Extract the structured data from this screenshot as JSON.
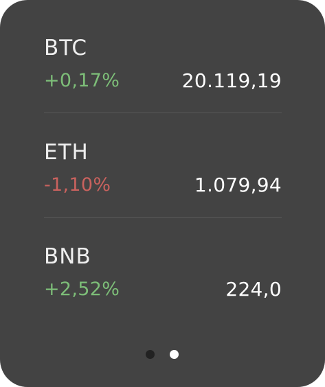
{
  "colors": {
    "background": "#434343",
    "positive": "#7dbe78",
    "negative": "#c9625e",
    "divider": "#5a5a5a",
    "dot_active": "#ffffff",
    "dot_inactive": "#222222"
  },
  "tickers": [
    {
      "symbol": "BTC",
      "change": "+0,17%",
      "direction": "up",
      "price": "20.119,19"
    },
    {
      "symbol": "ETH",
      "change": "-1,10%",
      "direction": "down",
      "price": "1.079,94"
    },
    {
      "symbol": "BNB",
      "change": "+2,52%",
      "direction": "up",
      "price": "224,0"
    }
  ],
  "pager": {
    "page_count": 2,
    "active_page": 2
  }
}
